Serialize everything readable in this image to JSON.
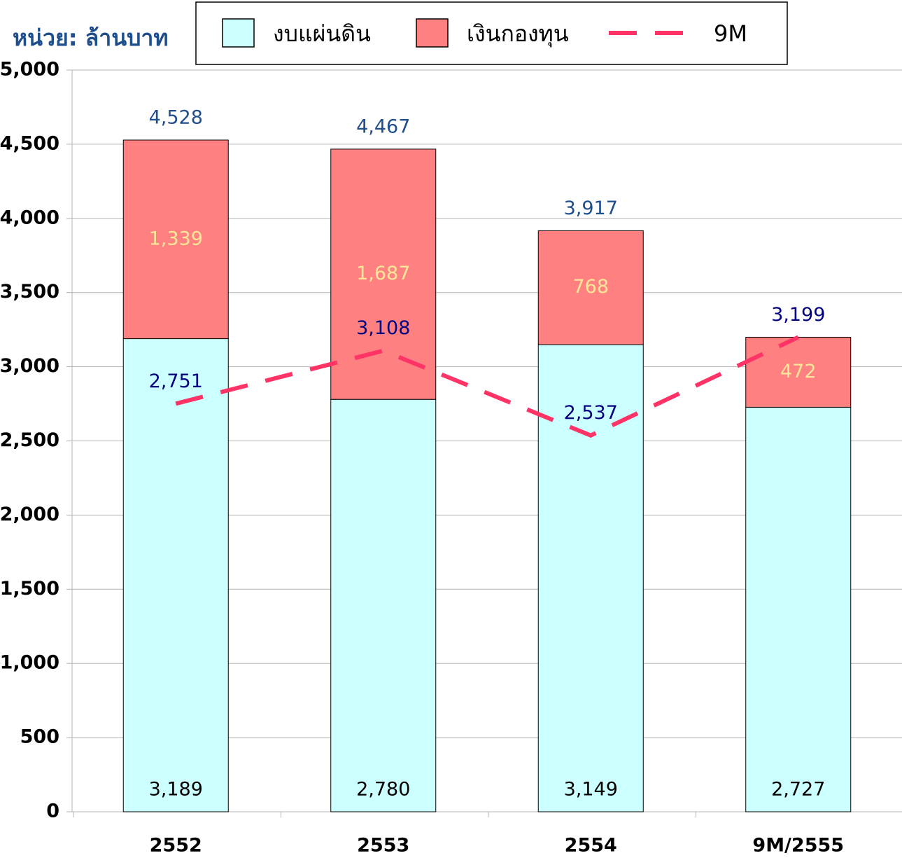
{
  "chart_data": {
    "type": "stacked_bar_line",
    "unit_label": "หน่วย: ล้านบาท",
    "categories": [
      "2552",
      "2553",
      "2554",
      "9M/2555"
    ],
    "series": [
      {
        "name": "งบแผ่นดิน",
        "color": "#ccffff",
        "values": [
          3189,
          2780,
          3149,
          2727
        ],
        "value_labels": [
          "3,189",
          "2,780",
          "3,149",
          "2,727"
        ]
      },
      {
        "name": "เงินกองทุน",
        "color": "#ff8080",
        "values": [
          1339,
          1687,
          768,
          472
        ],
        "value_labels": [
          "1,339",
          "1,687",
          "768",
          "472"
        ]
      },
      {
        "name": "9M",
        "type": "line",
        "color": "#ff3366",
        "dashed": true,
        "values": [
          2751,
          3108,
          2537,
          3199
        ],
        "value_labels": [
          "2,751",
          "3,108",
          "2,537",
          "3,199"
        ]
      }
    ],
    "total_labels": [
      "4,528",
      "4,467",
      "3,917",
      ""
    ],
    "ylim": [
      0,
      5000
    ],
    "yticks": [
      0,
      500,
      {
        "value": 1000,
        "label": "1,000"
      },
      {
        "value": 1500,
        "label": "1,500"
      },
      {
        "value": 2000,
        "label": "2,000"
      },
      {
        "value": 2500,
        "label": "2,500"
      },
      {
        "value": 3000,
        "label": "3,000"
      },
      {
        "value": 3500,
        "label": "3,500"
      },
      {
        "value": 4000,
        "label": "4,000"
      },
      {
        "value": 4500,
        "label": "4,500"
      },
      {
        "value": 5000,
        "label": "5,000"
      }
    ],
    "grid": true,
    "legend": "top"
  }
}
